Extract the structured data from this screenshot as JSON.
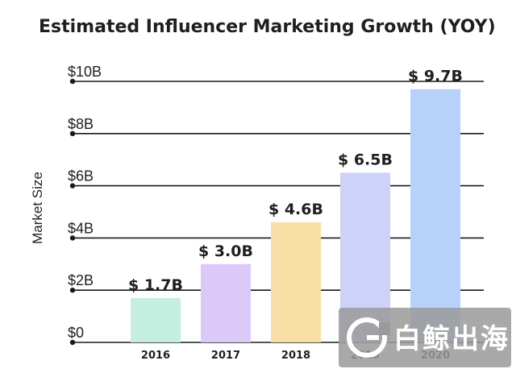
{
  "chart_data": {
    "type": "bar",
    "title": "Estimated Influencer Marketing Growth (YOY)",
    "xlabel": "",
    "ylabel": "Market Size",
    "categories": [
      "2016",
      "2017",
      "2018",
      "2019",
      "2020"
    ],
    "values": [
      1.7,
      3.0,
      4.6,
      6.5,
      9.7
    ],
    "value_labels": [
      "$ 1.7B",
      "$ 3.0B",
      "$ 4.6B",
      "$ 6.5B",
      "$ 9.7B"
    ],
    "bar_colors": [
      "#c4eee0",
      "#dcc9f7",
      "#f8dfa5",
      "#cdd2f9",
      "#b7d1fb"
    ],
    "yticks": [
      0,
      2,
      4,
      6,
      8,
      10
    ],
    "ytick_labels": [
      "$0",
      "$2B",
      "$4B",
      "$6B",
      "$8B",
      "$10B"
    ],
    "ylim": [
      0,
      10
    ],
    "grid": true,
    "legend": "none"
  },
  "watermark": {
    "text": "白鲸出海"
  },
  "colors": {
    "grid": "#1a1a1a",
    "text": "#1f1f1f",
    "watermark_bg": "#9a9a9a"
  }
}
